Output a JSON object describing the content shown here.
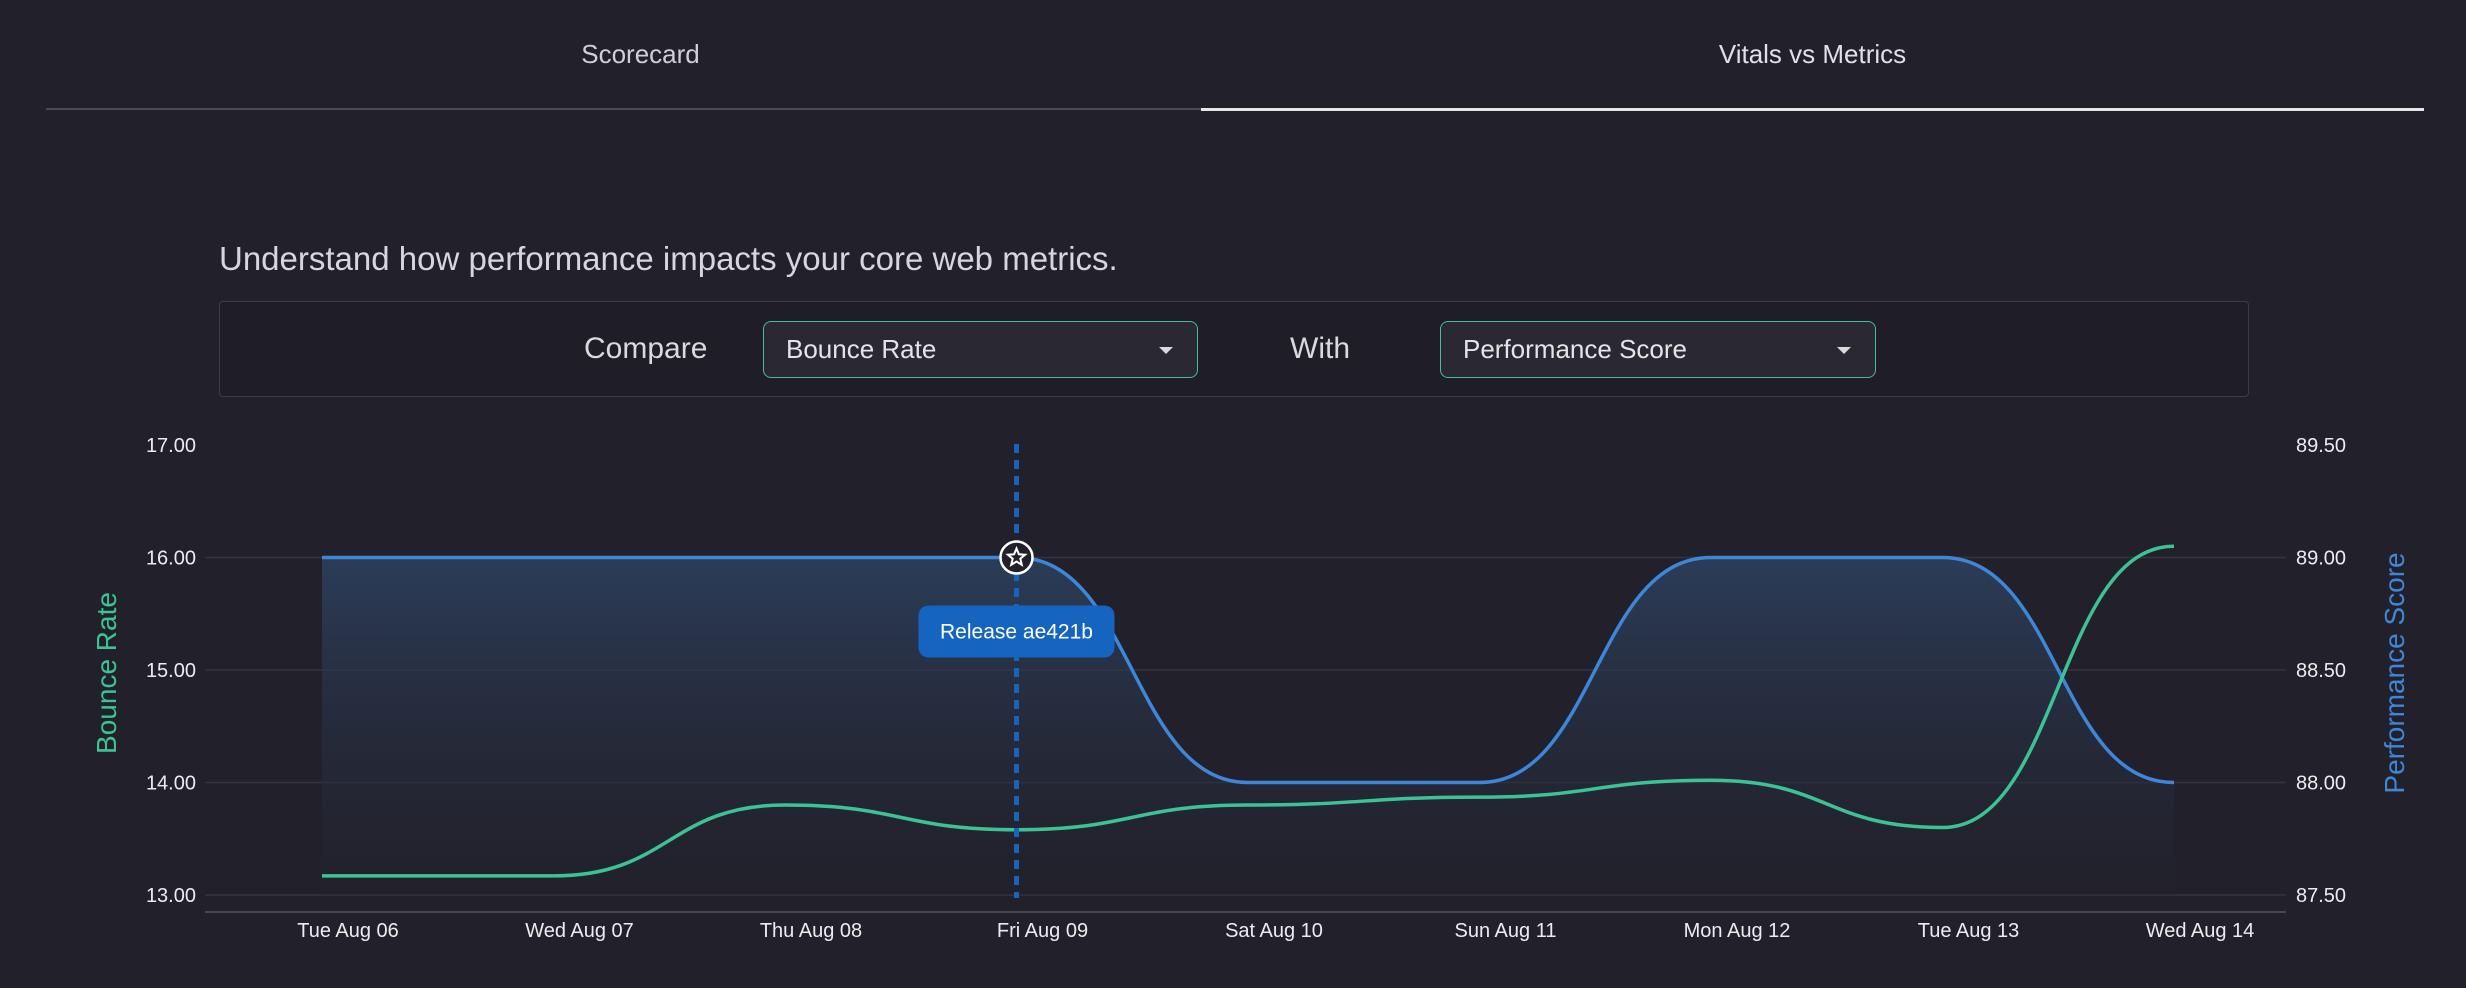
{
  "tabs": [
    {
      "label": "Scorecard",
      "active": false
    },
    {
      "label": "Vitals vs Metrics",
      "active": true
    }
  ],
  "subtitle": "Understand how performance impacts your core web metrics.",
  "controls": {
    "compare_label": "Compare",
    "compare_value": "Bounce Rate",
    "with_label": "With",
    "with_value": "Performance Score"
  },
  "release": {
    "label": "Release ae421b",
    "date": "Fri Aug 09",
    "icon": "star-icon"
  },
  "colors": {
    "bounce": "#3cc395",
    "performance": "#3d86d8",
    "release": "#1565c0"
  },
  "chart_data": {
    "type": "line",
    "categories": [
      "Tue Aug 06",
      "Wed Aug 07",
      "Thu Aug 08",
      "Fri Aug 09",
      "Sat Aug 10",
      "Sun Aug 11",
      "Mon Aug 12",
      "Tue Aug 13",
      "Wed Aug 14"
    ],
    "y_left": {
      "label": "Bounce Rate",
      "ticks": [
        "17.00",
        "16.00",
        "15.00",
        "14.00",
        "13.00"
      ],
      "range": [
        13,
        17
      ]
    },
    "y_right": {
      "label": "Performance Score",
      "ticks": [
        "89.50",
        "89.00",
        "88.50",
        "88.00",
        "87.50"
      ],
      "range": [
        87.5,
        89.5
      ]
    },
    "series": [
      {
        "name": "Bounce Rate",
        "axis": "left",
        "values": [
          13.17,
          13.17,
          13.8,
          13.58,
          13.8,
          13.87,
          14.02,
          13.6,
          16.1
        ]
      },
      {
        "name": "Performance Score",
        "axis": "right",
        "area": true,
        "values": [
          89.0,
          89.0,
          89.0,
          89.0,
          88.0,
          88.0,
          89.0,
          89.0,
          88.0
        ]
      }
    ],
    "grid": true
  }
}
